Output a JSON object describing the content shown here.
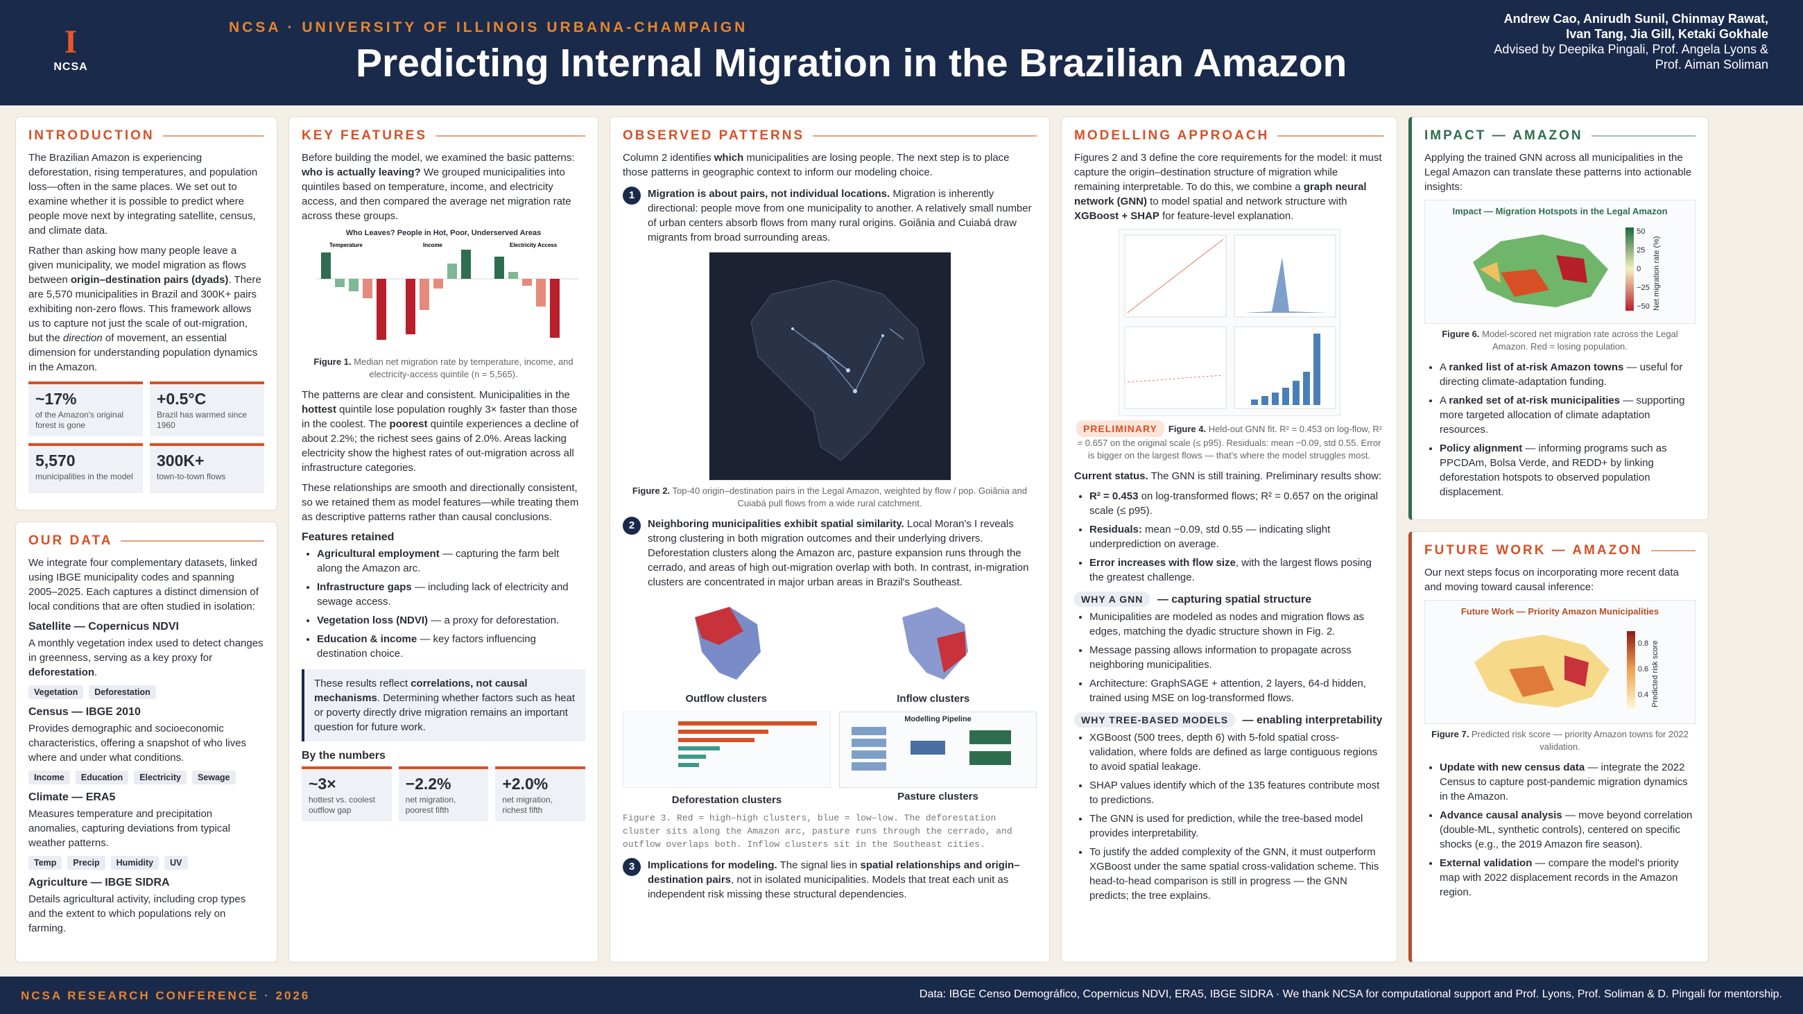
{
  "header": {
    "logo_text": "NCSA",
    "kicker": "NCSA · UNIVERSITY OF ILLINOIS URBANA-CHAMPAIGN",
    "title": "Predicting Internal Migration in the Brazilian Amazon",
    "authors": "Andrew Cao, Anirudh Sunil, Chinmay Rawat, Ivan Tang, Jia Gill, Ketaki Gokhale",
    "advisors": "Advised by Deepika Pingali, Prof. Angela Lyons & Prof. Aiman Soliman"
  },
  "intro": {
    "heading": "INTRODUCTION",
    "p1": "The Brazilian Amazon is experiencing deforestation, rising temperatures, and population loss—often in the same places. We set out to examine whether it is possible to predict where people move next by integrating satellite, census, and climate data.",
    "p2a": "Rather than asking how many people leave a given municipality, we model migration as flows between ",
    "p2b": "origin–destination pairs (dyads)",
    "p2c": ". There are 5,570 municipalities in Brazil and 300K+ pairs exhibiting non-zero flows. This framework allows us to capture not just the scale of out-migration, but the ",
    "p2d": "direction",
    "p2e": " of movement, an essential dimension for understanding population dynamics in the Amazon.",
    "stats": [
      {
        "v": "~17%",
        "l": "of the Amazon's original forest is gone"
      },
      {
        "v": "+0.5°C",
        "l": "Brazil has warmed since 1960"
      },
      {
        "v": "5,570",
        "l": "municipalities in the model"
      },
      {
        "v": "300K+",
        "l": "town-to-town flows"
      }
    ]
  },
  "data": {
    "heading": "OUR DATA",
    "intro": "We integrate four complementary datasets, linked using IBGE municipality codes and spanning 2005–2025. Each captures a distinct dimension of local conditions that are often studied in isolation:",
    "items": [
      {
        "title": "Satellite — Copernicus NDVI",
        "desc_a": "A monthly vegetation index used to detect changes in greenness, serving as a key proxy for ",
        "desc_b": "deforestation",
        "desc_c": ".",
        "tags": [
          "Vegetation",
          "Deforestation"
        ]
      },
      {
        "title": "Census — IBGE 2010",
        "desc_a": "Provides demographic and socioeconomic characteristics, offering a snapshot of who lives where and under what conditions.",
        "desc_b": "",
        "desc_c": "",
        "tags": [
          "Income",
          "Education",
          "Electricity",
          "Sewage"
        ]
      },
      {
        "title": "Climate — ERA5",
        "desc_a": "Measures temperature and precipitation anomalies, capturing deviations from typical weather patterns.",
        "desc_b": "",
        "desc_c": "",
        "tags": [
          "Temp",
          "Precip",
          "Humidity",
          "UV"
        ]
      },
      {
        "title": "Agriculture — IBGE SIDRA",
        "desc_a": "Details agricultural activity, including crop types and the extent to which populations rely on farming.",
        "desc_b": "",
        "desc_c": "",
        "tags": []
      }
    ]
  },
  "features": {
    "heading": "KEY FEATURES",
    "p1a": "Before building the model, we examined the basic patterns: ",
    "p1b": "who is actually leaving?",
    "p1c": " We grouped municipalities into quintiles based on temperature, income, and electricity access, and then compared the average net migration rate across these groups.",
    "fig1_title": "Who Leaves? People in Hot, Poor, Underserved Areas",
    "fig1_panels": [
      "Temperature",
      "Income",
      "Electricity Access"
    ],
    "fig1_cap_b": "Figure 1.",
    "fig1_cap": " Median net migration rate by temperature, income, and electricity-access quintile (n = 5,565).",
    "p2a": "The patterns are clear and consistent. Municipalities in the ",
    "p2b": "hottest",
    "p2c": " quintile lose population roughly 3× faster than those in the coolest. The ",
    "p2d": "poorest",
    "p2e": " quintile experiences a decline of about 2.2%; the richest sees gains of 2.0%. Areas lacking electricity show the highest rates of out-migration across all infrastructure categories.",
    "p3": "These relationships are smooth and directionally consistent, so we retained them as model features—while treating them as descriptive patterns rather than causal conclusions.",
    "retained_h": "Features retained",
    "retained": [
      {
        "b": "Agricultural employment",
        "t": " — capturing the farm belt along the Amazon arc."
      },
      {
        "b": "Infrastructure gaps",
        "t": " — including lack of electricity and sewage access."
      },
      {
        "b": "Vegetation loss (NDVI)",
        "t": " — a proxy for deforestation."
      },
      {
        "b": "Education & income",
        "t": " — key factors influencing destination choice."
      }
    ],
    "note_a": "These results reflect ",
    "note_b": "correlations, not causal mechanisms",
    "note_c": ". Determining whether factors such as heat or poverty directly drive migration remains an important question for future work.",
    "numbers_h": "By the numbers",
    "numbers": [
      {
        "v": "~3×",
        "l": "hottest vs. coolest outflow gap"
      },
      {
        "v": "−2.2%",
        "l": "net migration, poorest fifth"
      },
      {
        "v": "+2.0%",
        "l": "net migration, richest fifth"
      }
    ]
  },
  "patterns": {
    "heading": "OBSERVED PATTERNS",
    "intro_a": "Column 2 identifies ",
    "intro_b": "which",
    "intro_c": " municipalities are losing people. The next step is to place those patterns in geographic context to inform our modeling choice.",
    "i1_b": "Migration is about pairs, not individual locations.",
    "i1_t": " Migration is inherently directional: people move from one municipality to another. A relatively small number of urban centers absorb flows from many rural origins. Goiânia and Cuiabá draw migrants from broad surrounding areas.",
    "fig2_cap_b": "Figure 2.",
    "fig2_cap": " Top-40 origin–destination pairs in the Legal Amazon, weighted by flow / pop. Goiânia and Cuiabá pull flows from a wide rural catchment.",
    "i2_b": "Neighboring municipalities exhibit spatial similarity.",
    "i2_t": " Local Moran's I reveals strong clustering in both migration outcomes and their underlying drivers. Deforestation clusters along the Amazon arc, pasture expansion runs through the cerrado, and areas of high out-migration overlap with both. In contrast, in-migration clusters are concentrated in major urban areas in Brazil's Southeast.",
    "maps": [
      "Outflow clusters",
      "Inflow clusters"
    ],
    "bottom": [
      "Deforestation clusters",
      "Pasture clusters"
    ],
    "pipeline": "Modelling Pipeline",
    "fig3": "Figure 3. Red = high–high clusters, blue = low–low. The deforestation cluster sits along the Amazon arc, pasture runs through the cerrado, and outflow overlaps both. Inflow clusters sit in the Southeast cities.",
    "i3_b": "Implications for modeling.",
    "i3_a": " The signal lies in ",
    "i3_c": "spatial relationships and origin–destination pairs",
    "i3_d": ", not in isolated municipalities. Models that treat each unit as independent risk missing these structural dependencies."
  },
  "modelling": {
    "heading": "MODELLING APPROACH",
    "p1a": "Figures 2 and 3 define the core requirements for the model: it must capture the origin–destination structure of migration while remaining interpretable. To do this, we combine a ",
    "p1b": "graph neural network (GNN)",
    "p1c": " to model spatial and network structure with ",
    "p1d": "XGBoost + SHAP",
    "p1e": " for feature-level explanation.",
    "prelim": "PRELIMINARY",
    "fig4_b": "Figure 4.",
    "fig4": " Held-out GNN fit. R² = 0.453 on log-flow, R² = 0.657 on the original scale (≤ p95). Residuals: mean −0.09, std 0.55. Error is bigger on the largest flows — that's where the model struggles most.",
    "status_b": "Current status.",
    "status": " The GNN is still training. Preliminary results show:",
    "results": [
      {
        "b": "R² = 0.453",
        "t": " on log-transformed flows; R² = 0.657 on the original scale (≤ p95)."
      },
      {
        "b": "Residuals:",
        "t": " mean −0.09, std 0.55 — indicating slight underprediction on average."
      },
      {
        "b": "Error increases with flow size",
        "t": ", with the largest flows posing the greatest challenge."
      }
    ],
    "gnn_pill": "WHY A GNN",
    "gnn_h": " — capturing spatial structure",
    "gnn": [
      "Municipalities are modeled as nodes and migration flows as edges, matching the dyadic structure shown in Fig. 2.",
      "Message passing allows information to propagate across neighboring municipalities.",
      "Architecture: GraphSAGE + attention, 2 layers, 64-d hidden, trained using MSE on log-transformed flows."
    ],
    "tree_pill": "WHY TREE-BASED MODELS",
    "tree_h": " — enabling interpretability",
    "tree": [
      "XGBoost (500 trees, depth 6) with 5-fold spatial cross-validation, where folds are defined as large contiguous regions to avoid spatial leakage.",
      "SHAP values identify which of the 135 features contribute most to predictions.",
      "The GNN is used for prediction, while the tree-based model provides interpretability.",
      "To justify the added complexity of the GNN, it must outperform XGBoost under the same spatial cross-validation scheme. This head-to-head comparison is still in progress — the GNN predicts; the tree explains."
    ]
  },
  "impact": {
    "heading": "IMPACT — AMAZON",
    "p1": "Applying the trained GNN across all municipalities in the Legal Amazon can translate these patterns into actionable insights:",
    "map_title": "Impact — Migration Hotspots in the Legal Amazon",
    "cbar_label": "Net migration rate (%)",
    "ticks": [
      "50",
      "25",
      "0",
      "−25",
      "−50"
    ],
    "fig6_b": "Figure 6.",
    "fig6": " Model-scored net migration rate across the Legal Amazon. Red = losing population.",
    "list": [
      {
        "a": "A ",
        "b": "ranked list of at-risk Amazon towns",
        "c": " — useful for directing climate-adaptation funding."
      },
      {
        "a": "A ",
        "b": "ranked set of at-risk municipalities",
        "c": " — supporting more targeted allocation of climate adaptation resources."
      },
      {
        "a": "",
        "b": "Policy alignment",
        "c": " — informing programs such as PPCDAm, Bolsa Verde, and REDD+ by linking deforestation hotspots to observed population displacement."
      }
    ]
  },
  "future": {
    "heading": "FUTURE WORK — AMAZON",
    "p1": "Our next steps focus on incorporating more recent data and moving toward causal inference:",
    "map_title": "Future Work — Priority Amazon Municipalities",
    "cbar_label": "Predicted risk score",
    "ticks": [
      "0.8",
      "0.6",
      "0.4"
    ],
    "fig7_b": "Figure 7.",
    "fig7": " Predicted risk score — priority Amazon towns for 2022 validation.",
    "list": [
      {
        "b": "Update with new census data",
        "c": " — integrate the 2022 Census to capture post-pandemic migration dynamics in the Amazon."
      },
      {
        "b": "Advance causal analysis",
        "c": " — move beyond correlation (double-ML, synthetic controls), centered on specific shocks (e.g., the 2019 Amazon fire season)."
      },
      {
        "b": "External validation",
        "c": " — compare the model's priority map with 2022 displacement records in the Amazon region."
      }
    ]
  },
  "footer": {
    "left": "NCSA RESEARCH CONFERENCE · 2026",
    "right": "Data: IBGE Censo Demográfico, Copernicus NDVI, ERA5, IBGE SIDRA · We thank NCSA for computational support and Prof. Lyons, Prof. Soliman & D. Pingali for mentorship."
  },
  "colors": {
    "navy": "#1a2a4b",
    "orange": "#d94f25",
    "green": "#2e6e4e",
    "rust": "#b5502a"
  }
}
